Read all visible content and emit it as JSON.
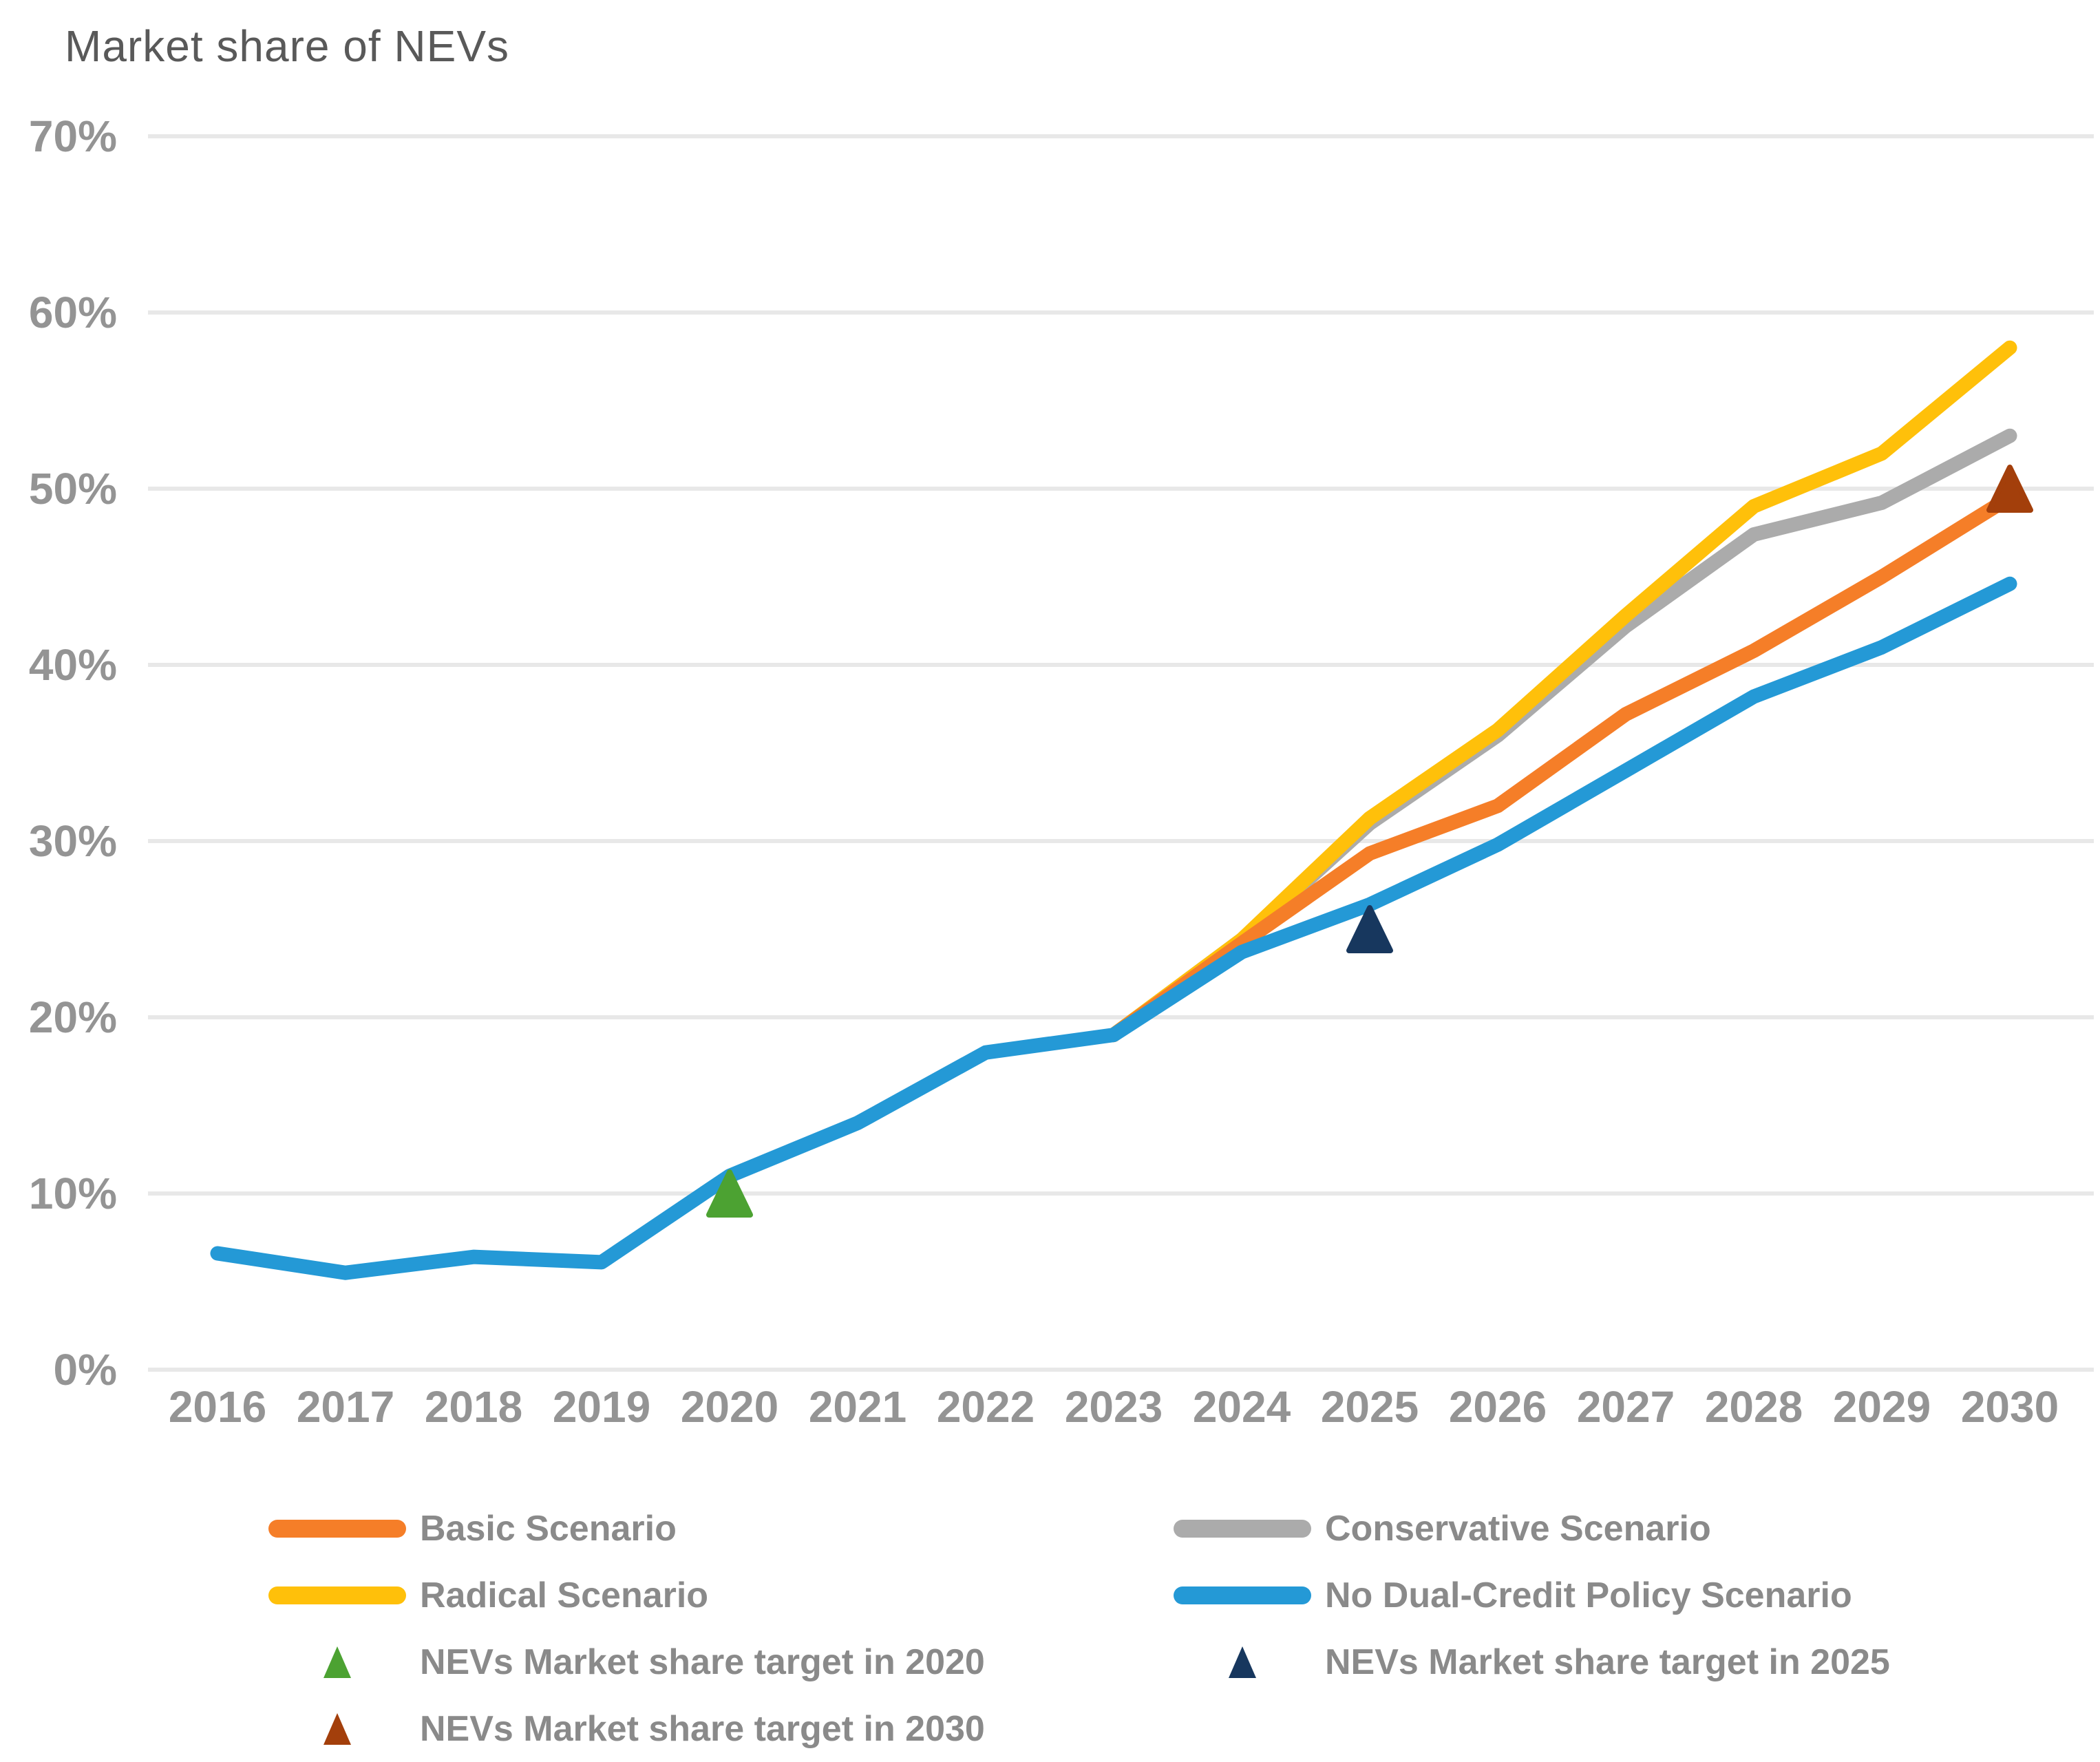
{
  "title": "Market share of NEVs",
  "chart_data": {
    "type": "line",
    "title": "Market share of NEVs",
    "xlabel": "",
    "ylabel": "Market share of NEVs",
    "ylim": [
      0,
      70
    ],
    "grid": "horizontal",
    "legend_position": "bottom",
    "x_ticks": [
      2016,
      2017,
      2018,
      2019,
      2020,
      2021,
      2022,
      2023,
      2024,
      2025,
      2026,
      2027,
      2028,
      2029,
      2030
    ],
    "y_ticks": [
      0,
      10,
      20,
      30,
      40,
      50,
      60,
      70
    ],
    "y_tick_labels": [
      "0%",
      "10%",
      "20%",
      "30%",
      "40%",
      "50%",
      "60%",
      "70%"
    ],
    "series": [
      {
        "name": "Conservative Scenario",
        "color": "#ababab",
        "x": [
          2023,
          2024,
          2025,
          2026,
          2027,
          2028,
          2029,
          2030
        ],
        "values": [
          19,
          24.4,
          31,
          36,
          42.2,
          47.4,
          49.2,
          53
        ]
      },
      {
        "name": "Radical Scenario",
        "color": "#ffc00a",
        "x": [
          2023,
          2024,
          2025,
          2026,
          2027,
          2028,
          2029,
          2030
        ],
        "values": [
          19,
          24.4,
          31.3,
          36.3,
          42.8,
          49,
          52,
          58
        ]
      },
      {
        "name": "Basic Scenario",
        "color": "#f57e28",
        "x": [
          2023,
          2024,
          2025,
          2026,
          2027,
          2028,
          2029,
          2030
        ],
        "values": [
          19,
          24.2,
          29.3,
          32,
          37.2,
          40.8,
          45,
          49.5
        ]
      },
      {
        "name": "No Dual-Credit Policy Scenario",
        "color": "#2499d6",
        "x": [
          2016,
          2017,
          2018,
          2019,
          2020,
          2021,
          2022,
          2023,
          2024,
          2025,
          2026,
          2027,
          2028,
          2029,
          2030
        ],
        "values": [
          6.6,
          5.5,
          6.4,
          6.1,
          11,
          14,
          18,
          19,
          23.7,
          26.4,
          29.8,
          34,
          38.2,
          41,
          44.6
        ]
      }
    ],
    "point_markers": [
      {
        "name": "NEVs Market share target in 2020",
        "shape": "triangle",
        "color": "#4ca232",
        "x": 2020,
        "value": 10
      },
      {
        "name": "NEVs Market share target in 2025",
        "shape": "triangle",
        "color": "#17375e",
        "x": 2025,
        "value": 25
      },
      {
        "name": "NEVs Market share target in 2030",
        "shape": "triangle",
        "color": "#a33f0b",
        "x": 2030,
        "value": 50
      }
    ]
  },
  "legend": {
    "columns": [
      [
        {
          "label": "Basic Scenario",
          "ref": "Basic Scenario",
          "swatch": "line"
        },
        {
          "label": "Radical Scenario",
          "ref": "Radical Scenario",
          "swatch": "line"
        },
        {
          "label": "NEVs Market share target in 2020",
          "ref": "NEVs Market share target in 2020",
          "swatch": "triangle"
        },
        {
          "label": "NEVs Market share target in 2030",
          "ref": "NEVs Market share target in 2030",
          "swatch": "triangle"
        }
      ],
      [
        {
          "label": "Conservative Scenario",
          "ref": "Conservative Scenario",
          "swatch": "line"
        },
        {
          "label": "No Dual-Credit Policy Scenario",
          "ref": "No Dual-Credit Policy Scenario",
          "swatch": "line"
        },
        {
          "label": "NEVs Market share target in 2025",
          "ref": "NEVs Market share target in 2025",
          "swatch": "triangle"
        }
      ]
    ]
  }
}
